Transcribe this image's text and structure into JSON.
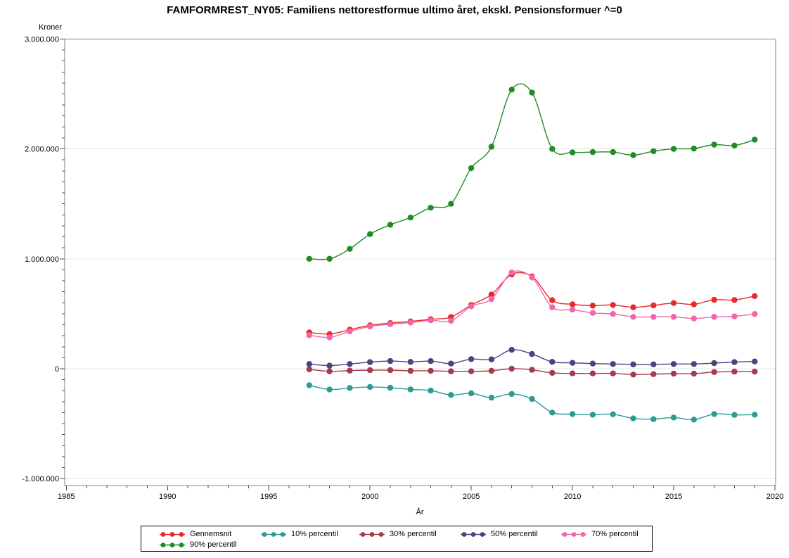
{
  "chart_data": {
    "type": "line",
    "title": "FAMFORMREST_NY05: Familiens nettorestformue ultimo året, ekskl. Pensionsformuer ^=0",
    "xlabel": "År",
    "ylabel": "Kroner",
    "grid": "horizontal-major-only",
    "legend_position": "bottom",
    "x_range": [
      1985,
      2020
    ],
    "y_range": [
      -1000000,
      3000000
    ],
    "x_major_ticks": [
      1985,
      1990,
      1995,
      2000,
      2005,
      2010,
      2015,
      2020
    ],
    "x_tick_labels": [
      "1985",
      "1990",
      "1995",
      "2000",
      "2005",
      "2010",
      "2015",
      "2020"
    ],
    "x_minor_step": 1,
    "y_major_ticks": [
      3000000,
      2000000,
      1000000,
      0,
      -1000000
    ],
    "y_tick_labels": [
      "3.000.000",
      "2.000.000",
      "1.000.000",
      "0",
      "-1.000.000"
    ],
    "y_minor_step": 100000,
    "x": [
      1997,
      1998,
      1999,
      2000,
      2001,
      2002,
      2003,
      2004,
      2005,
      2006,
      2007,
      2008,
      2009,
      2010,
      2011,
      2012,
      2013,
      2014,
      2015,
      2016,
      2017,
      2018,
      2019
    ],
    "series": [
      {
        "name": "Gennemsnit",
        "color": "#e9292b",
        "values": [
          330000,
          315000,
          355000,
          395000,
          415000,
          430000,
          450000,
          470000,
          580000,
          675000,
          858000,
          840000,
          623000,
          586000,
          574000,
          580000,
          559000,
          576000,
          597000,
          586000,
          627000,
          625000,
          661000
        ]
      },
      {
        "name": "10% percentil",
        "color": "#2b9c92",
        "values": [
          -150000,
          -189000,
          -175000,
          -166000,
          -173000,
          -188000,
          -199000,
          -239000,
          -224000,
          -263000,
          -229000,
          -275000,
          -399000,
          -412000,
          -418000,
          -414000,
          -452000,
          -459000,
          -444000,
          -463000,
          -412000,
          -420000,
          -418000
        ]
      },
      {
        "name": "30% percentil",
        "color": "#a33b4d",
        "values": [
          -5000,
          -24000,
          -17000,
          -13000,
          -13000,
          -19000,
          -19000,
          -24000,
          -24000,
          -19000,
          0,
          -10000,
          -38000,
          -43000,
          -43000,
          -43000,
          -53000,
          -49000,
          -45000,
          -45000,
          -30000,
          -26000,
          -26000
        ]
      },
      {
        "name": "50% percentil",
        "color": "#44467e",
        "values": [
          43000,
          28000,
          43000,
          60000,
          70000,
          62000,
          69000,
          47000,
          88000,
          85000,
          172000,
          134000,
          63000,
          53000,
          47000,
          43000,
          40000,
          40000,
          43000,
          43000,
          51000,
          60000,
          66000
        ]
      },
      {
        "name": "70% percentil",
        "color": "#f166a9",
        "values": [
          305000,
          285000,
          340000,
          385000,
          405000,
          420000,
          440000,
          436000,
          568000,
          634000,
          876000,
          830000,
          559000,
          538000,
          508000,
          498000,
          472000,
          472000,
          472000,
          457000,
          472000,
          476000,
          498000
        ]
      },
      {
        "name": "90% percentil",
        "color": "#1f8c25",
        "values": [
          1000000,
          1000000,
          1090000,
          1225000,
          1310000,
          1375000,
          1465000,
          1500000,
          1825000,
          2020000,
          2540000,
          2512000,
          2000000,
          1968000,
          1971000,
          1971000,
          1943000,
          1979000,
          2000000,
          2003000,
          2039000,
          2031000,
          2084000
        ]
      }
    ]
  }
}
